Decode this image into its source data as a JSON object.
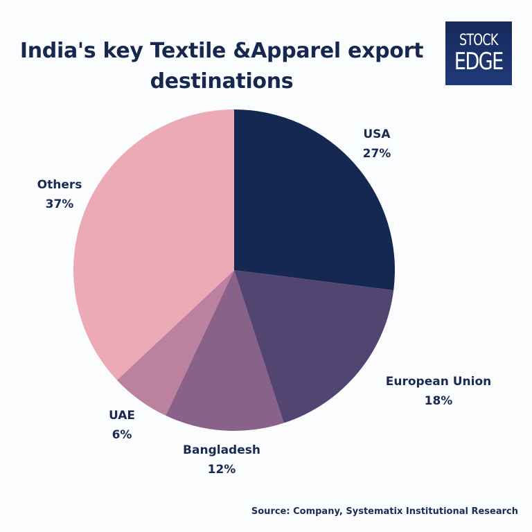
{
  "title": {
    "line1": "India's key Textile &Apparel export",
    "line2": "destinations"
  },
  "logo": {
    "line1": "STOCK",
    "line2": "EDGE",
    "bg": "#1a3066"
  },
  "source": "Source: Company, Systematix Institutional Research",
  "labels": {
    "usa": {
      "name": "USA",
      "pct": "27%"
    },
    "eu": {
      "name": "European Union",
      "pct": "18%"
    },
    "bangladesh": {
      "name": "Bangladesh",
      "pct": "12%"
    },
    "uae": {
      "name": "UAE",
      "pct": "6%"
    },
    "others": {
      "name": "Others",
      "pct": "37%"
    }
  },
  "chart_data": {
    "type": "pie",
    "title": "India's key Textile &Apparel export destinations",
    "categories": [
      "USA",
      "European Union",
      "Bangladesh",
      "UAE",
      "Others"
    ],
    "values": [
      27,
      18,
      12,
      6,
      37
    ],
    "unit": "%",
    "colors": [
      "#152851",
      "#524572",
      "#896289",
      "#bb819e",
      "#eca9b6"
    ],
    "start_angle": "12 o'clock, clockwise",
    "legend": "data labels outside slices",
    "source": "Source: Company, Systematix Institutional Research"
  }
}
